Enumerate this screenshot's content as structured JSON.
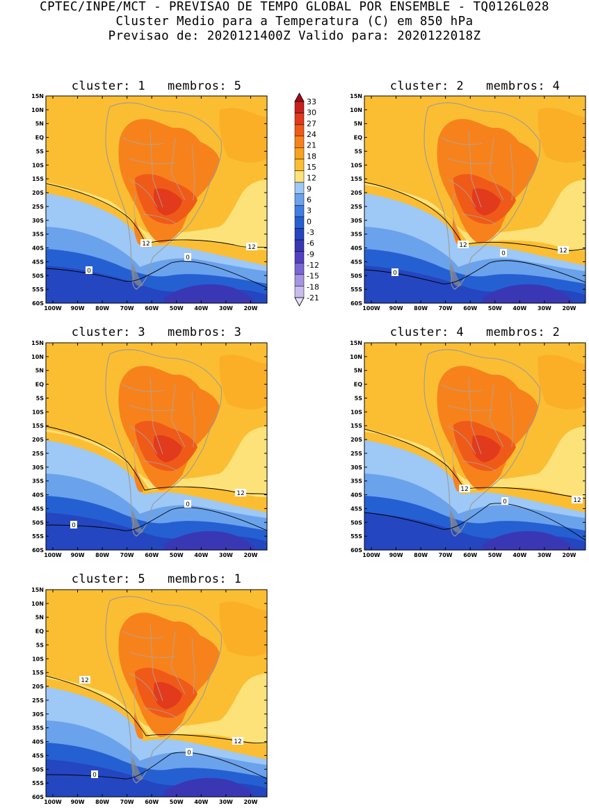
{
  "header": {
    "line1": "CPTEC/INPE/MCT - PREVISAO DE TEMPO GLOBAL POR ENSEMBLE - TQ0126L028",
    "line2": "Cluster Medio para a Temperatura (C) em 850 hPa",
    "line3": "Previsao de: 2020121400Z   Valido para: 2020122018Z"
  },
  "axes": {
    "lat_labels": [
      "15N",
      "10N",
      "5N",
      "EQ",
      "5S",
      "10S",
      "15S",
      "20S",
      "25S",
      "30S",
      "35S",
      "40S",
      "45S",
      "50S",
      "55S",
      "60S"
    ],
    "lon_labels": [
      "100W",
      "90W",
      "80W",
      "70W",
      "60W",
      "50W",
      "40W",
      "30W",
      "20W"
    ]
  },
  "colorbar": {
    "levels": [
      "33",
      "30",
      "27",
      "24",
      "21",
      "18",
      "15",
      "12",
      "9",
      "6",
      "3",
      "0",
      "-3",
      "-6",
      "-9",
      "-12",
      "-15",
      "-18",
      "-21"
    ],
    "colors": [
      "#a50a18",
      "#c8201f",
      "#e23a1c",
      "#f05a19",
      "#f7821c",
      "#f9a21f",
      "#fbbe32",
      "#fde27a",
      "#9ec8f5",
      "#6aa2ec",
      "#3f7ee2",
      "#2560d2",
      "#2446c0",
      "#3a37b4",
      "#5240c2",
      "#7a66d4",
      "#a494e2",
      "#c8bcee",
      "#e6e0f7"
    ]
  },
  "clusters": [
    {
      "title": "cluster: 1   membros: 5",
      "contour_labels": [
        "12",
        "12",
        "0",
        "0"
      ]
    },
    {
      "title": "cluster: 2   membros: 4",
      "contour_labels": [
        "12",
        "12",
        "0",
        "0"
      ]
    },
    {
      "title": "cluster: 3   membros: 3",
      "contour_labels": [
        "12",
        "0",
        "0"
      ]
    },
    {
      "title": "cluster: 4   membros: 2",
      "contour_labels": [
        "12",
        "12",
        "0"
      ]
    },
    {
      "title": "cluster: 5   membros: 1",
      "contour_labels": [
        "12",
        "12",
        "0",
        "0"
      ]
    }
  ]
}
